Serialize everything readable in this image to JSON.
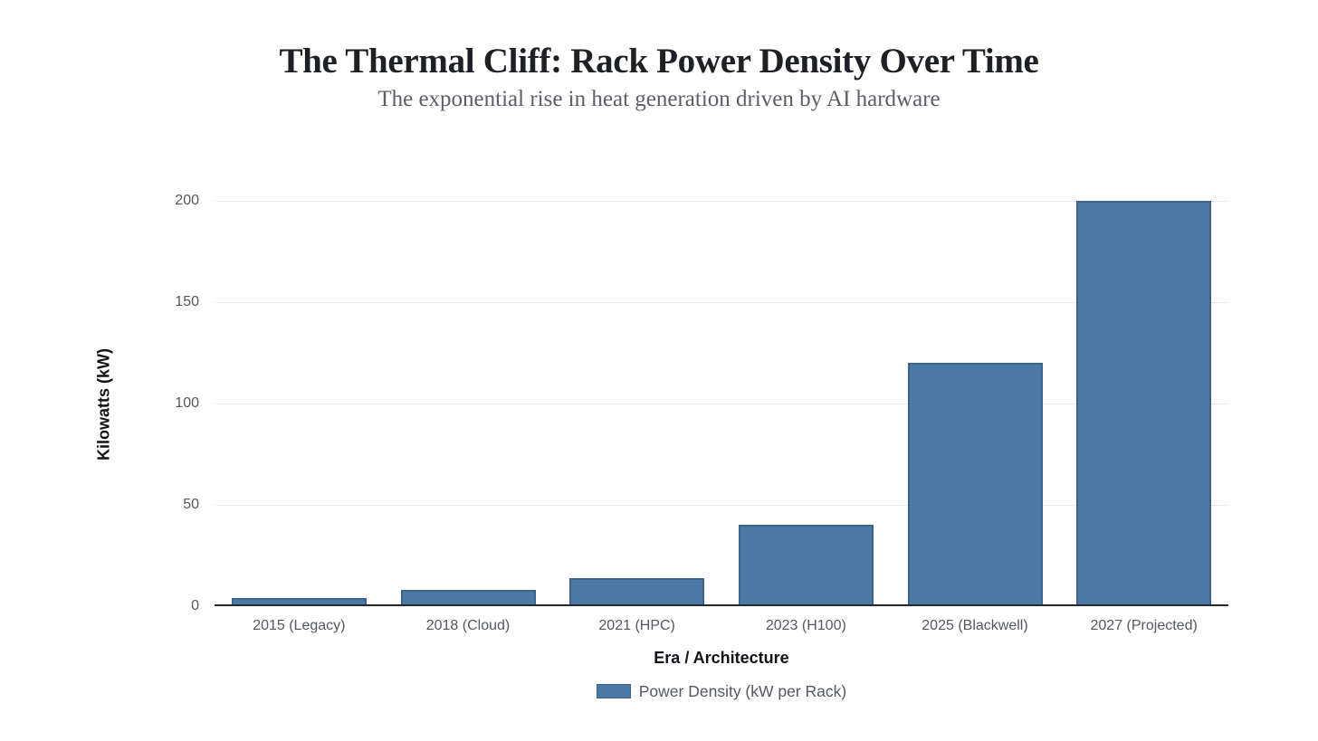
{
  "chart_data": {
    "type": "bar",
    "title": "The Thermal Cliff: Rack Power Density Over Time",
    "subtitle": "The exponential rise in heat generation driven by AI hardware",
    "xlabel": "Era / Architecture",
    "ylabel": "Kilowatts (kW)",
    "categories": [
      "2015 (Legacy)",
      "2018 (Cloud)",
      "2021 (HPC)",
      "2023 (H100)",
      "2025 (Blackwell)",
      "2027 (Projected)"
    ],
    "series": [
      {
        "name": "Power Density (kW per Rack)",
        "values": [
          4,
          8,
          14,
          40,
          120,
          200
        ]
      }
    ],
    "ylim": [
      0,
      200
    ],
    "yticks": [
      0,
      50,
      100,
      150,
      200
    ],
    "grid": "horizontal",
    "legend_position": "bottom",
    "colors": {
      "bar_fill": "#4d79a7",
      "bar_border": "#3a648f",
      "grid_line": "#e9ebee",
      "axis_line": "#24282d",
      "tick_text": "#54585e",
      "axis_title_text": "#0f1317",
      "title_text": "#1d2025",
      "subtitle_text": "#5c6066",
      "legend_text": "#54595f"
    }
  }
}
